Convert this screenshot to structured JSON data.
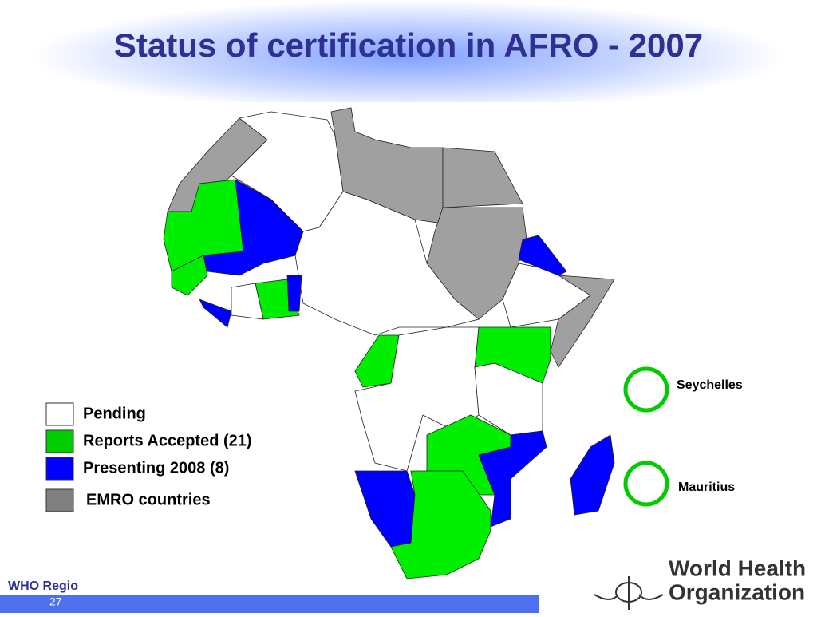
{
  "header": {
    "title": "Status of certification in AFRO - 2007"
  },
  "legend": {
    "items": [
      {
        "label": "Pending",
        "color": "#ffffff"
      },
      {
        "label": "Reports Accepted (21)",
        "color": "#00cc00"
      },
      {
        "label": "Presenting 2008 (8)",
        "color": "#0000ff"
      },
      {
        "label": "EMRO countries",
        "color": "#808080"
      }
    ]
  },
  "islands": [
    {
      "label": "Seychelles"
    },
    {
      "label": "Mauritius"
    }
  ],
  "footer": {
    "region": "WHO Regio",
    "page": "27",
    "logo_line1": "World Health",
    "logo_line2": "Organization"
  }
}
